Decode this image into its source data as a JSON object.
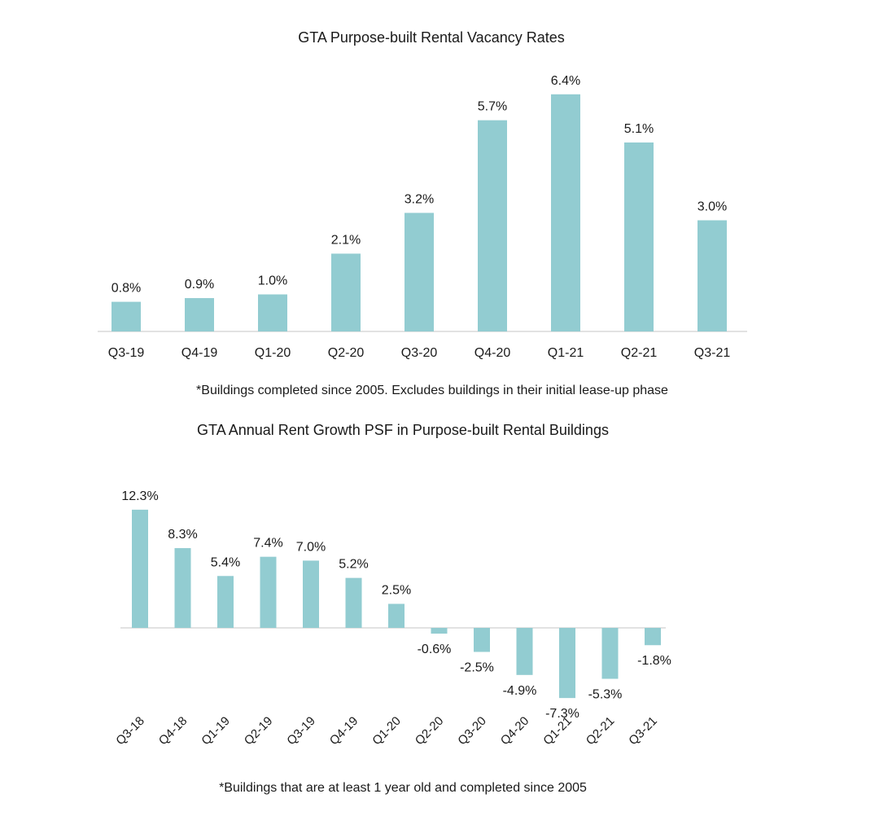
{
  "chart_data": [
    {
      "type": "bar",
      "title": "GTA Purpose-built Rental Vacancy Rates",
      "note": "*Buildings completed since 2005. Excludes buildings in their initial lease-up phase",
      "categories": [
        "Q3-19",
        "Q4-19",
        "Q1-20",
        "Q2-20",
        "Q3-20",
        "Q4-20",
        "Q1-21",
        "Q2-21",
        "Q3-21"
      ],
      "values": [
        0.8,
        0.9,
        1.0,
        2.1,
        3.2,
        5.7,
        6.4,
        5.1,
        3.0
      ],
      "data_labels": [
        "0.8%",
        "0.9%",
        "1.0%",
        "2.1%",
        "3.2%",
        "5.7%",
        "6.4%",
        "5.1%",
        "3.0%"
      ],
      "unit": "%",
      "grid": false,
      "legend": "none",
      "bar_color": "#92ccd1"
    },
    {
      "type": "bar",
      "title": "GTA Annual Rent Growth PSF in Purpose-built Rental Buildings",
      "note": "*Buildings that are at least 1 year old and completed since 2005",
      "categories": [
        "Q3-18",
        "Q4-18",
        "Q1-19",
        "Q2-19",
        "Q3-19",
        "Q4-19",
        "Q1-20",
        "Q2-20",
        "Q3-20",
        "Q4-20",
        "Q1-21",
        "Q2-21",
        "Q3-21"
      ],
      "values": [
        12.3,
        8.3,
        5.4,
        7.4,
        7.0,
        5.2,
        2.5,
        -0.6,
        -2.5,
        -4.9,
        -7.3,
        -5.3,
        -1.8
      ],
      "data_labels": [
        "12.3%",
        "8.3%",
        "5.4%",
        "7.4%",
        "7.0%",
        "5.2%",
        "2.5%",
        "-0.6%",
        "-2.5%",
        "-4.9%",
        "-7.3%",
        "-5.3%",
        "-1.8%"
      ],
      "unit": "%",
      "grid": false,
      "legend": "none",
      "bar_color": "#92ccd1"
    }
  ]
}
